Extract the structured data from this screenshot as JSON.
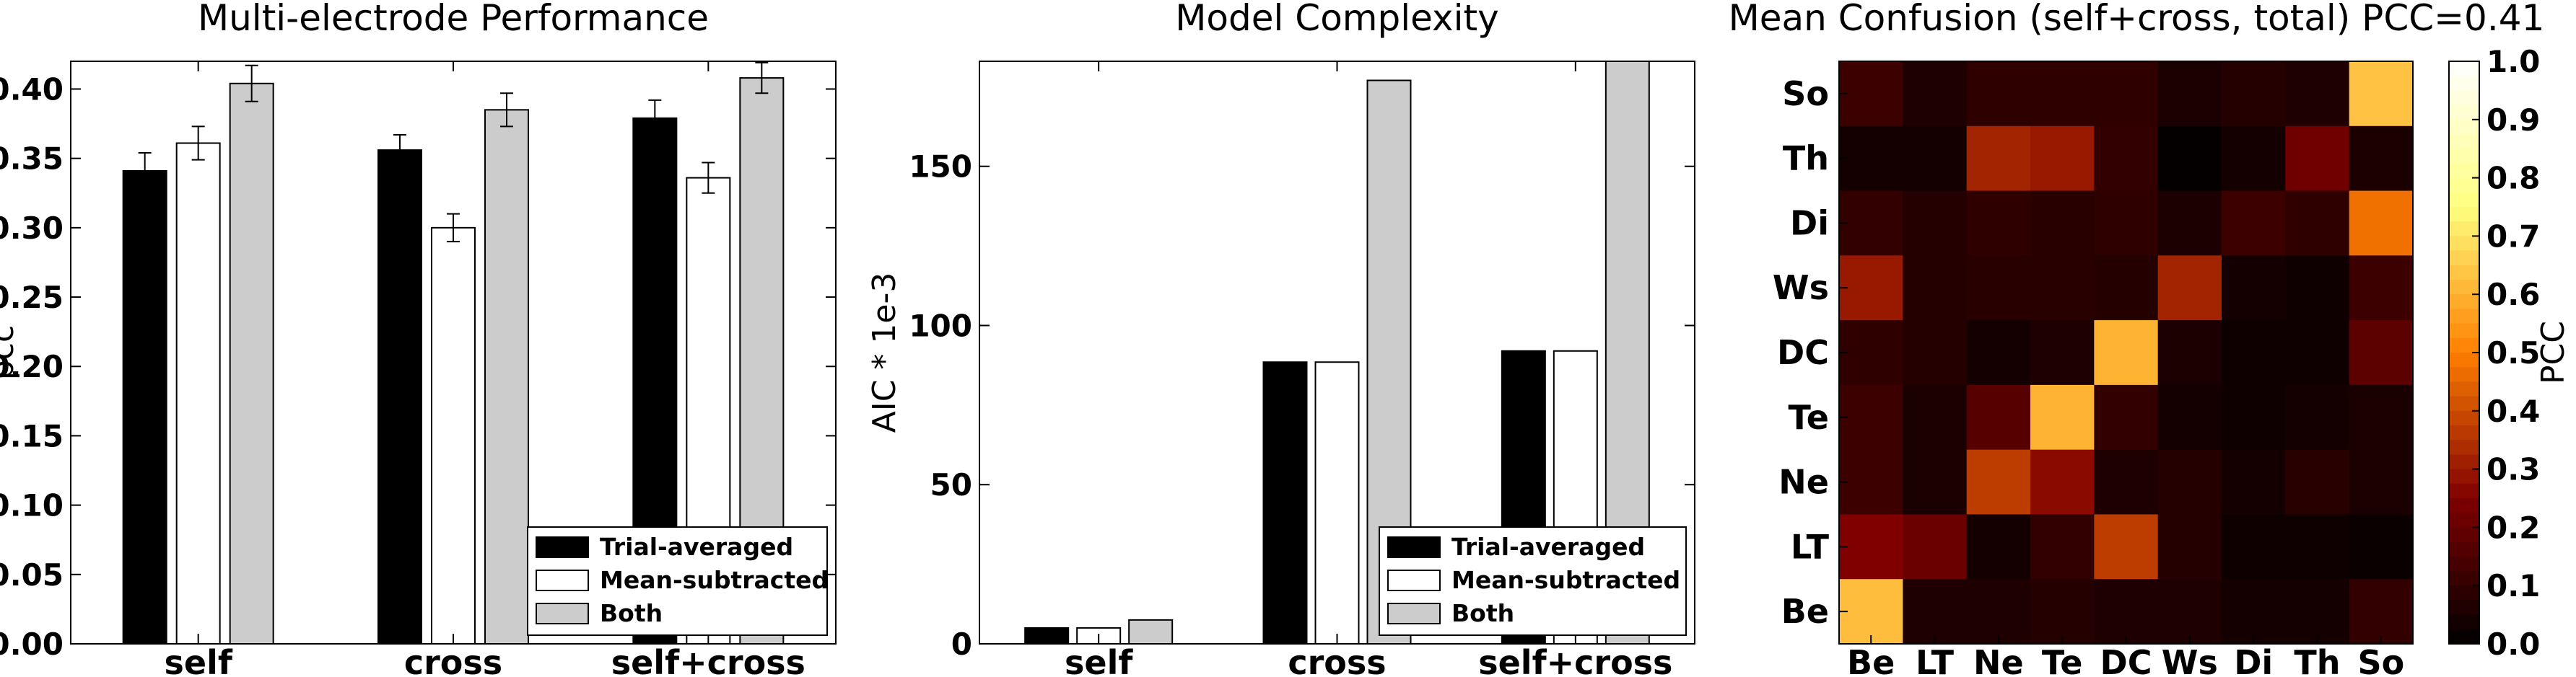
{
  "chart_data": [
    {
      "type": "bar",
      "title": "Multi-electrode Performance",
      "ylabel": "pcc",
      "xlabel": "",
      "categories": [
        "self",
        "cross",
        "self+cross"
      ],
      "ylim": [
        0.0,
        0.42
      ],
      "yticks": [
        "0.00",
        "0.05",
        "0.10",
        "0.15",
        "0.20",
        "0.25",
        "0.30",
        "0.35",
        "0.40"
      ],
      "error_bars": true,
      "legend_position": "lower-right",
      "series": [
        {
          "name": "Trial-averaged",
          "values": [
            0.341,
            0.356,
            0.379
          ],
          "errors": [
            0.013,
            0.011,
            0.013
          ],
          "color": "#000000"
        },
        {
          "name": "Mean-subtracted",
          "values": [
            0.361,
            0.3,
            0.336
          ],
          "errors": [
            0.012,
            0.01,
            0.011
          ],
          "color": "#ffffff"
        },
        {
          "name": "Both",
          "values": [
            0.404,
            0.385,
            0.408
          ],
          "errors": [
            0.013,
            0.012,
            0.011
          ],
          "color": "#cccccc"
        }
      ]
    },
    {
      "type": "bar",
      "title": "Model Complexity",
      "ylabel": "AIC * 1e-3",
      "xlabel": "",
      "categories": [
        "self",
        "cross",
        "self+cross"
      ],
      "ylim": [
        0,
        183
      ],
      "yticks": [
        "0",
        "50",
        "100",
        "150"
      ],
      "legend_position": "lower-right",
      "series": [
        {
          "name": "Trial-averaged",
          "values": [
            5,
            88.5,
            92
          ],
          "color": "#000000"
        },
        {
          "name": "Mean-subtracted",
          "values": [
            5,
            88.5,
            92
          ],
          "color": "#ffffff"
        },
        {
          "name": "Both",
          "values": [
            7.5,
            177,
            185
          ],
          "color": "#cccccc"
        }
      ]
    },
    {
      "type": "heatmap",
      "title": "Mean Confusion (self+cross, total) PCC=0.41",
      "x_categories": [
        "Be",
        "LT",
        "Ne",
        "Te",
        "DC",
        "Ws",
        "Di",
        "Th",
        "So"
      ],
      "y_categories": [
        "So",
        "Th",
        "Di",
        "Ws",
        "DC",
        "Te",
        "Ne",
        "LT",
        "Be"
      ],
      "colorbar_label": "PCC",
      "colormap": "afmhot",
      "vmin": 0.0,
      "vmax": 1.0,
      "colorbar_ticks": [
        "0.0",
        "0.1",
        "0.2",
        "0.3",
        "0.4",
        "0.5",
        "0.6",
        "0.7",
        "0.8",
        "0.9",
        "1.0"
      ],
      "matrix": [
        [
          0.12,
          0.06,
          0.09,
          0.09,
          0.09,
          0.05,
          0.07,
          0.06,
          0.63
        ],
        [
          0.04,
          0.04,
          0.32,
          0.3,
          0.1,
          0.01,
          0.04,
          0.22,
          0.05
        ],
        [
          0.1,
          0.07,
          0.09,
          0.08,
          0.09,
          0.05,
          0.12,
          0.09,
          0.47
        ],
        [
          0.3,
          0.07,
          0.08,
          0.08,
          0.07,
          0.32,
          0.04,
          0.03,
          0.12
        ],
        [
          0.09,
          0.07,
          0.04,
          0.06,
          0.6,
          0.05,
          0.03,
          0.03,
          0.18
        ],
        [
          0.12,
          0.05,
          0.17,
          0.6,
          0.1,
          0.04,
          0.03,
          0.04,
          0.05
        ],
        [
          0.12,
          0.05,
          0.37,
          0.27,
          0.06,
          0.07,
          0.04,
          0.08,
          0.05
        ],
        [
          0.25,
          0.21,
          0.04,
          0.1,
          0.37,
          0.07,
          0.03,
          0.03,
          0.02
        ],
        [
          0.62,
          0.06,
          0.06,
          0.07,
          0.06,
          0.06,
          0.04,
          0.04,
          0.1
        ]
      ]
    }
  ]
}
